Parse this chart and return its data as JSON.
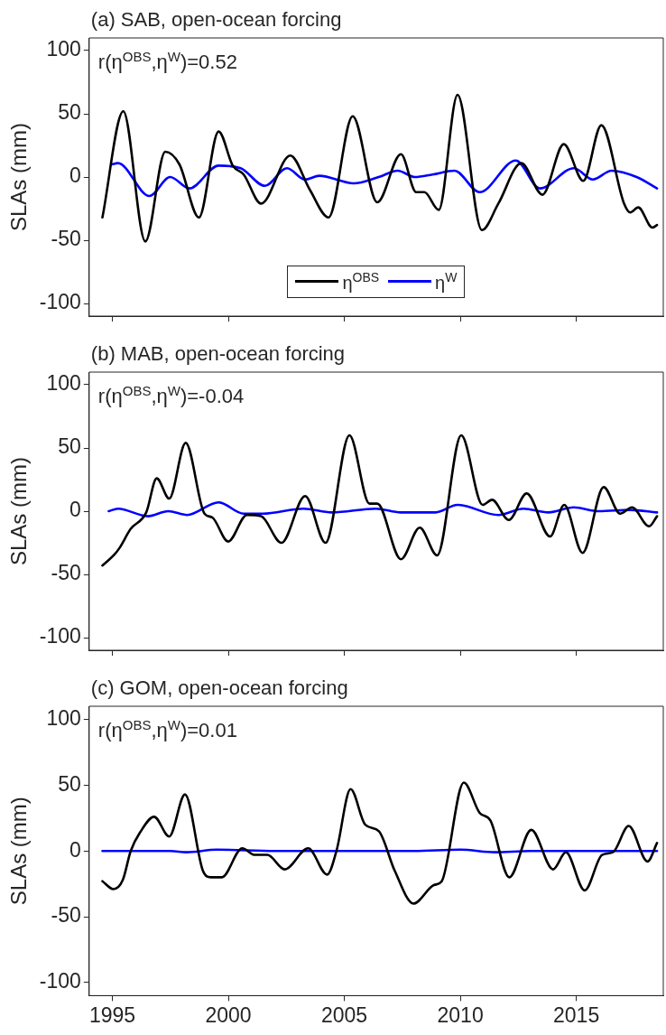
{
  "chart_data": [
    {
      "type": "line",
      "title": "(a) SAB, open-ocean forcing",
      "ylabel": "SLAs (mm)",
      "annotations": [
        "r(η$^{OBS}$,η$^{W}$)=0.52"
      ],
      "xlim": [
        1994,
        2018.75
      ],
      "xticks": [
        1995,
        2000,
        2005,
        2010,
        2015
      ],
      "ylim": [
        -110,
        110
      ],
      "yticks": [
        -100,
        -50,
        0,
        50,
        100
      ],
      "tick_labels": "y",
      "legend": "bottom",
      "grid": false,
      "series": [
        {
          "name": "η$^{OBS}$",
          "color": "#000000",
          "x": [
            1994.57,
            1995.47,
            1996.42,
            1997.28,
            1997.89,
            1998.73,
            1999.58,
            2000.19,
            2000.66,
            2001.41,
            2002.67,
            2003.51,
            2004.32,
            2005.36,
            2006.42,
            2007.44,
            2008.1,
            2008.45,
            2009.07,
            2009.88,
            2010.93,
            2011.64,
            2012.63,
            2013.54,
            2014.46,
            2015.3,
            2016.08,
            2017.06,
            2017.33,
            2017.67,
            2018.28,
            2018.48
          ],
          "values": [
            -32,
            52,
            -51,
            20,
            10,
            -32,
            36,
            9,
            2,
            -21,
            17,
            -10,
            -32,
            48,
            -20,
            18,
            -12,
            -12,
            -26,
            65,
            -42,
            -21,
            11,
            -14,
            26,
            -3,
            41,
            -21,
            -28,
            -24,
            -40,
            -38
          ]
        },
        {
          "name": "η$^{W}$",
          "color": "#0000ff",
          "x": [
            1994.97,
            1995.24,
            1996.6,
            1997.49,
            1998.32,
            1999.58,
            2000.53,
            2001.57,
            2002.53,
            2003.3,
            2003.92,
            2005.4,
            2006.48,
            2007.3,
            2008.04,
            2008.8,
            2009.75,
            2010.83,
            2012.39,
            2013.43,
            2014.9,
            2015.71,
            2016.52,
            2017.6,
            2018.48
          ],
          "values": [
            10,
            11,
            -15,
            0,
            -9,
            9,
            7,
            -7,
            7,
            -2,
            1,
            -5,
            0,
            5,
            0,
            2,
            5,
            -12,
            13,
            -9,
            7,
            -2,
            5,
            0,
            -9
          ]
        }
      ]
    },
    {
      "type": "line",
      "title": "(b) MAB, open-ocean forcing",
      "ylabel": "SLAs (mm)",
      "annotations": [
        "r(η$^{OBS}$,η$^{W}$)=-0.04"
      ],
      "xlim": [
        1994,
        2018.75
      ],
      "xticks": [
        1995,
        2000,
        2005,
        2010,
        2015
      ],
      "ylim": [
        -110,
        110
      ],
      "yticks": [
        -100,
        -50,
        0,
        50,
        100
      ],
      "tick_labels": "y",
      "grid": false,
      "series": [
        {
          "color": "#000000",
          "x": [
            1994.57,
            1995.1,
            1995.31,
            1995.79,
            1996.46,
            1996.91,
            1997.45,
            1998.16,
            1998.97,
            1999.31,
            1999.99,
            2000.8,
            2001.41,
            2002.29,
            2003.31,
            2004.19,
            2005.22,
            2006.08,
            2006.42,
            2007.44,
            2008.25,
            2009.0,
            2010.04,
            2010.96,
            2011.37,
            2012.09,
            2012.86,
            2013.87,
            2014.48,
            2015.27,
            2016.18,
            2016.89,
            2017.4,
            2018.14,
            2018.48
          ],
          "values": [
            -43,
            -34,
            -29,
            -14,
            -1,
            26,
            10,
            54,
            -2,
            -5,
            -24,
            -3,
            -4,
            -25,
            12,
            -25,
            60,
            6,
            6,
            -38,
            -13,
            -35,
            60,
            5,
            9,
            -7,
            14,
            -20,
            5,
            -33,
            19,
            -2,
            3,
            -12,
            -4
          ]
        },
        {
          "color": "#0000ff",
          "x": [
            1994.84,
            1995.24,
            1996.53,
            1997.41,
            1998.22,
            1999.58,
            2000.66,
            2001.48,
            2003.24,
            2004.46,
            2006.36,
            2007.44,
            2008.93,
            2009.88,
            2011.64,
            2012.72,
            2013.8,
            2014.89,
            2015.97,
            2017.33,
            2018.48
          ],
          "values": [
            0,
            2,
            -4,
            0,
            -3,
            7,
            -2,
            -2,
            2,
            -1,
            2,
            -1,
            -1,
            5,
            -3,
            2,
            -1,
            3,
            0,
            1,
            -1
          ]
        }
      ]
    },
    {
      "type": "line",
      "title": "(c) GOM, open-ocean forcing",
      "ylabel": "SLAs (mm)",
      "annotations": [
        "r(η$^{OBS}$,η$^{W}$)=0.01"
      ],
      "xlim": [
        1994,
        2018.75
      ],
      "xticks": [
        1995,
        2000,
        2005,
        2010,
        2015
      ],
      "ylim": [
        -110,
        110
      ],
      "yticks": [
        -100,
        -50,
        0,
        50,
        100
      ],
      "grid": false,
      "series": [
        {
          "color": "#000000",
          "x": [
            1994.57,
            1995.04,
            1995.45,
            1995.79,
            1996.19,
            1996.8,
            1997.45,
            1998.13,
            1998.9,
            1999.24,
            1999.72,
            2000.6,
            2001.14,
            2001.68,
            2002.43,
            2003.44,
            2004.26,
            2004.66,
            2005.27,
            2005.9,
            2006.49,
            2007.17,
            2007.98,
            2008.86,
            2009.2,
            2010.15,
            2010.83,
            2011.3,
            2012.11,
            2013.06,
            2014.0,
            2014.55,
            2015.36,
            2016.11,
            2016.58,
            2017.26,
            2018.07,
            2018.48
          ],
          "values": [
            -23,
            -29,
            -22,
            0,
            14,
            26,
            11,
            43,
            -15,
            -20,
            -20,
            2,
            -3,
            -3,
            -14,
            2,
            -18,
            0,
            47,
            20,
            15,
            -15,
            -40,
            -26,
            -23,
            52,
            29,
            23,
            -20,
            16,
            -14,
            -1,
            -30,
            -3,
            -1,
            19,
            -8,
            6
          ]
        },
        {
          "color": "#0000ff",
          "x": [
            1994.57,
            1997.5,
            1998.2,
            1999.5,
            2002,
            2005,
            2008,
            2010,
            2011.5,
            2013,
            2018.48
          ],
          "values": [
            0,
            0,
            -1,
            1,
            0,
            0,
            0,
            1,
            -1,
            0,
            0
          ]
        }
      ]
    }
  ]
}
